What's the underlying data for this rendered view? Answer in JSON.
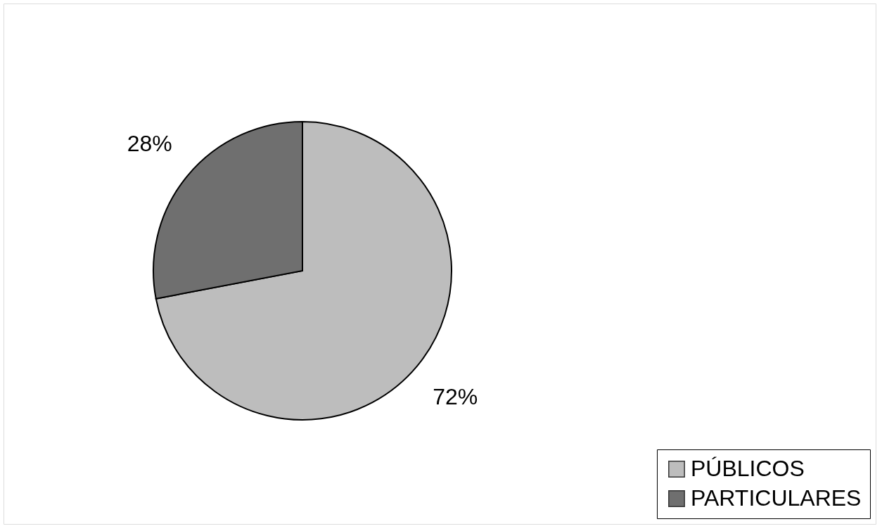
{
  "chart_data": {
    "type": "pie",
    "categories": [
      "PÚBLICOS",
      "PARTICULARES"
    ],
    "values": [
      72,
      28
    ],
    "colors": [
      "#bdbdbd",
      "#6f6f6f"
    ],
    "value_labels": [
      "72%",
      "28%"
    ],
    "legend": "bottom right"
  }
}
